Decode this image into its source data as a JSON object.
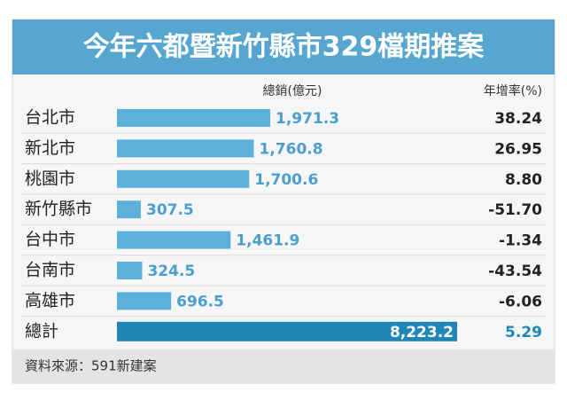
{
  "chart_data": {
    "type": "bar",
    "title": "今年六都暨新竹縣市329檔期推案",
    "value_header": "總銷(億元)",
    "growth_header": "年增率(%)",
    "categories": [
      "台北市",
      "新北市",
      "桃園市",
      "新竹縣市",
      "台中市",
      "台南市",
      "高雄市"
    ],
    "values": [
      1971.3,
      1760.8,
      1700.6,
      307.5,
      1461.9,
      324.5,
      696.5
    ],
    "value_labels": [
      "1,971.3",
      "1,760.8",
      "1,700.6",
      "307.5",
      "1,461.9",
      "324.5",
      "696.5"
    ],
    "growth_values": [
      38.24,
      26.95,
      8.8,
      -51.7,
      -1.34,
      -43.54,
      -6.06
    ],
    "growth_labels": [
      "38.24",
      "26.95",
      "8.80",
      "-51.70",
      "-1.34",
      "-43.54",
      "-6.06"
    ],
    "color": "#5cb1da",
    "total": {
      "name": "總計",
      "value": 8223.2,
      "value_label": "8,223.2",
      "growth": 5.29,
      "growth_label": "5.29",
      "color": "#1f87b5"
    },
    "source": "資料來源：591新建案"
  }
}
